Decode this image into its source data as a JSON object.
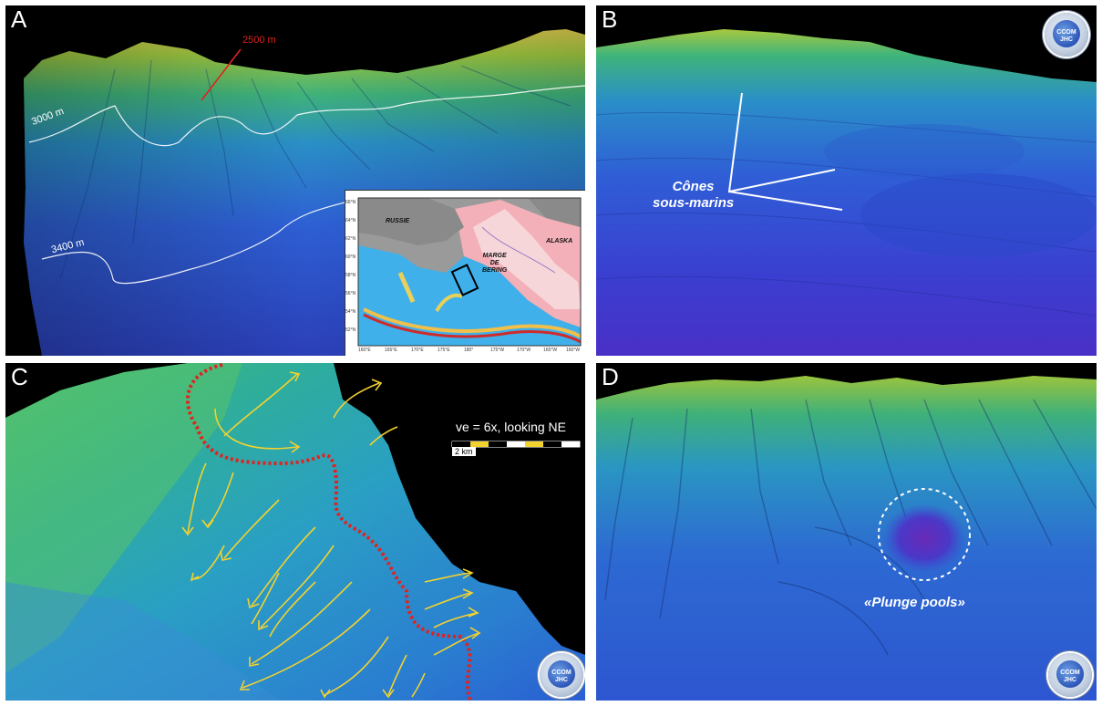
{
  "panels": {
    "a": {
      "label": "A",
      "depth_2500": "2500 m",
      "depth_3000": "3000 m",
      "depth_3400": "3400 m",
      "map": {
        "russie": "RUSSIE",
        "alaska": "ALASKA",
        "marge_line1": "MARGE",
        "marge_line2": "DE",
        "marge_line3": "BERING",
        "lat_ticks": [
          "66°N",
          "64°N",
          "62°N",
          "60°N",
          "58°N",
          "56°N",
          "54°N",
          "52°N"
        ],
        "lon_ticks": [
          "160°E",
          "165°E",
          "170°E",
          "175°E",
          "180°",
          "175°W",
          "170°W",
          "165°W",
          "160°W"
        ]
      }
    },
    "b": {
      "label": "B",
      "annotation_line1": "Cônes",
      "annotation_line2": "sous-marins",
      "logo_line1": "CCOM",
      "logo_line2": "JHC"
    },
    "c": {
      "label": "C",
      "ve_text": "ve = 6x, looking NE",
      "scale_text": "2 km",
      "logo_line1": "CCOM",
      "logo_line2": "JHC"
    },
    "d": {
      "label": "D",
      "annotation": "«Plunge pools»",
      "logo_line1": "CCOM",
      "logo_line2": "JHC"
    }
  },
  "colors": {
    "arrow_yellow": "#f2d22e",
    "dotted_red": "#e0231f",
    "depth_line_red": "#e02020",
    "contour_white": "#ffffff"
  }
}
